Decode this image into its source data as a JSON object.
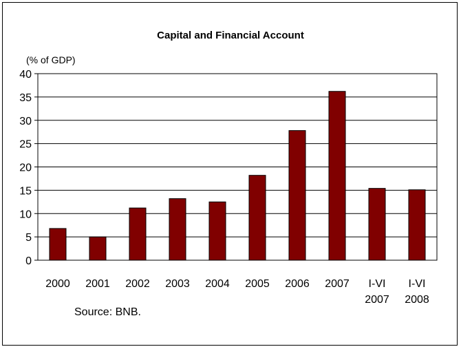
{
  "chart_data": {
    "type": "bar",
    "title": "Capital and Financial Account",
    "ylabel": "(% of GDP)",
    "xlabel": "",
    "categories": [
      [
        "2000"
      ],
      [
        "2001"
      ],
      [
        "2002"
      ],
      [
        "2003"
      ],
      [
        "2004"
      ],
      [
        "2005"
      ],
      [
        "2006"
      ],
      [
        "2007"
      ],
      [
        "I-VI",
        "2007"
      ],
      [
        "I-VI",
        "2008"
      ]
    ],
    "values": [
      6.8,
      5.0,
      11.2,
      13.2,
      12.5,
      18.2,
      27.8,
      36.2,
      15.4,
      15.1
    ],
    "ylim": [
      0,
      40
    ],
    "yticks": [
      0,
      5,
      10,
      15,
      20,
      25,
      30,
      35,
      40
    ],
    "grid": true,
    "legend": "none",
    "bar_color": "#800000",
    "source_note": "Source: BNB."
  }
}
